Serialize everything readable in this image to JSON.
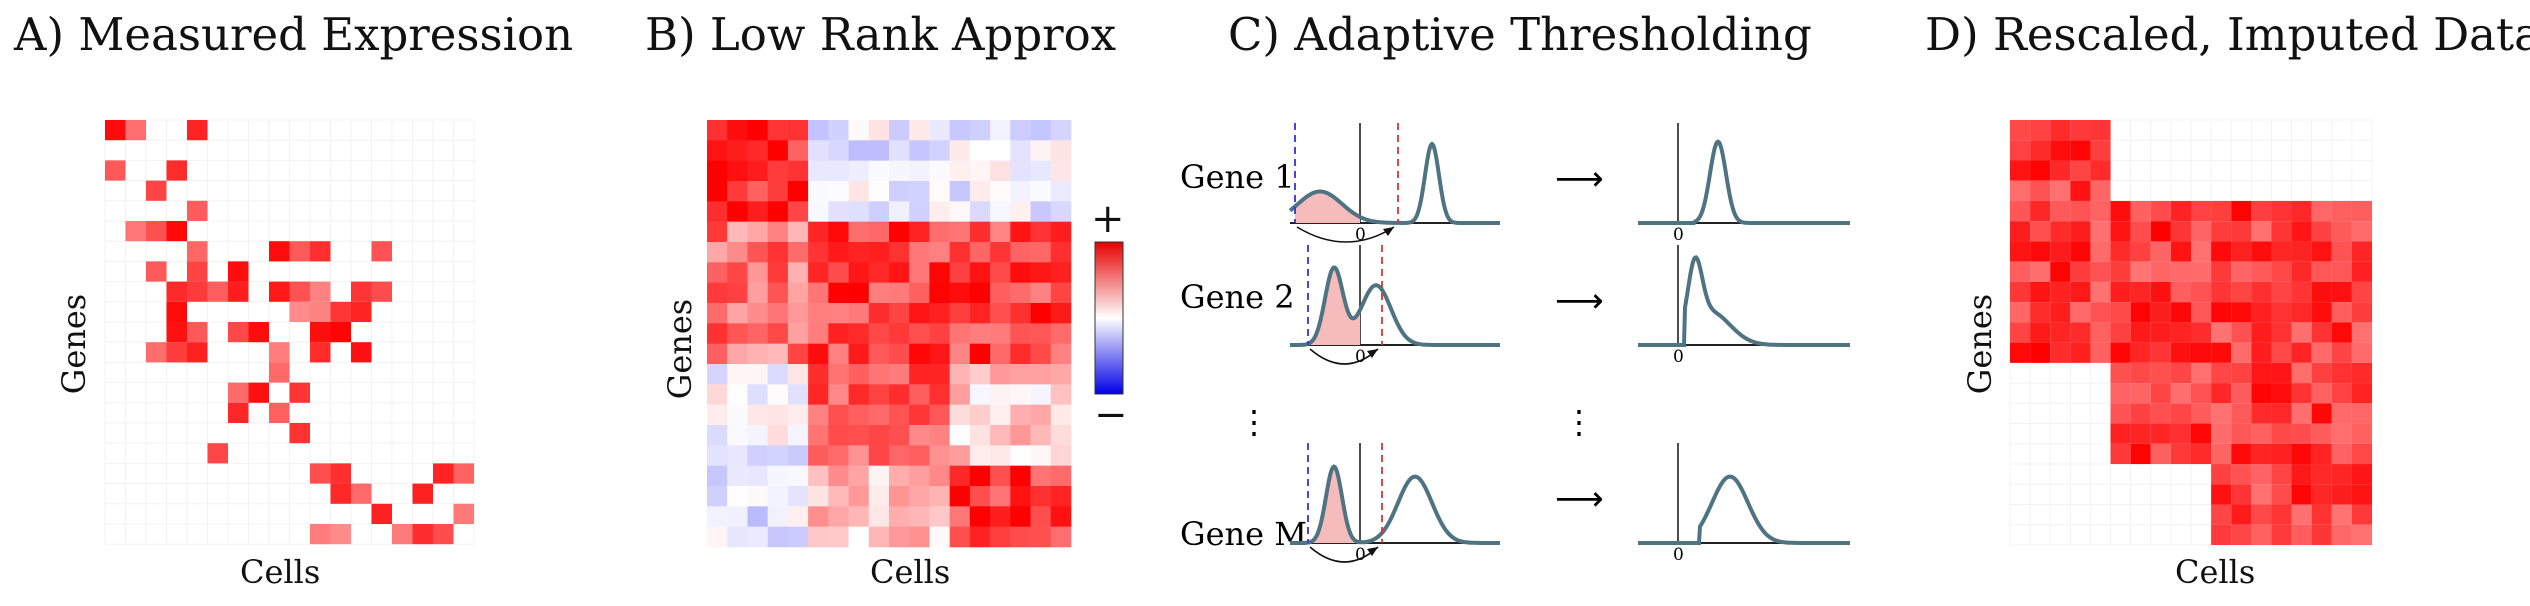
{
  "panels": [
    {
      "id": "A",
      "title": "A) Measured Expression",
      "xlabel": "Cells",
      "ylabel": "Genes"
    },
    {
      "id": "B",
      "title": "B) Low Rank Approx",
      "xlabel": "Cells",
      "ylabel": "Genes"
    },
    {
      "id": "C",
      "title": "C) Adaptive Thresholding"
    },
    {
      "id": "D",
      "title": "D) Rescaled, Imputed Data",
      "xlabel": "Cells",
      "ylabel": "Genes"
    }
  ],
  "colorbar": {
    "plus": "+",
    "minus": "−"
  },
  "genes": [
    {
      "label": "Gene 1"
    },
    {
      "label": "Gene 2"
    },
    {
      "label": "⋮"
    },
    {
      "label": "Gene M"
    }
  ],
  "dots_right": "⋮",
  "arrow": "⟶",
  "zero": "0",
  "colors": {
    "curve": "#4e7382",
    "red": "#ff0000",
    "blue": "#0000ff",
    "shade": "#f6bcbc",
    "blue_dash": "#3333dd",
    "red_dash": "#dd3333"
  }
}
